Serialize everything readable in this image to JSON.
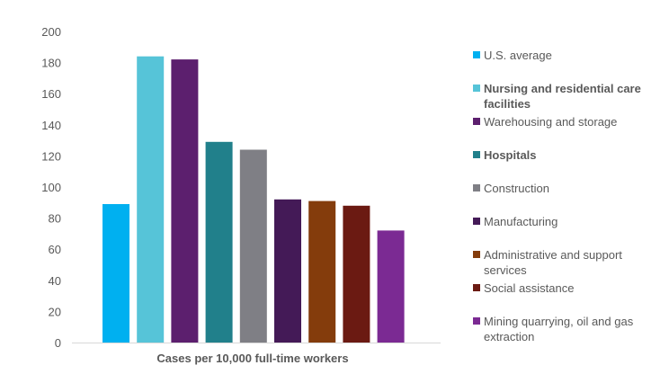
{
  "chart_data": {
    "type": "bar",
    "xlabel": "Cases per 10,000 full-time workers",
    "ylim": [
      0,
      200
    ],
    "yticks": [
      0,
      20,
      40,
      60,
      80,
      100,
      120,
      140,
      160,
      180,
      200
    ],
    "grid": false,
    "legend_position": "right",
    "series": [
      {
        "name": "U.S. average",
        "value": 89,
        "color": "#00B0F0",
        "bold": false
      },
      {
        "name": "Nursing and residential care facilities",
        "value": 184,
        "color": "#56C4D8",
        "bold": true
      },
      {
        "name": "Warehousing and storage",
        "value": 182,
        "color": "#5C1F6E",
        "bold": false
      },
      {
        "name": "Hospitals",
        "value": 129,
        "color": "#21808B",
        "bold": true
      },
      {
        "name": "Construction",
        "value": 124,
        "color": "#7F7F85",
        "bold": false
      },
      {
        "name": "Manufacturing",
        "value": 92,
        "color": "#441A57",
        "bold": false
      },
      {
        "name": "Administrative and support services",
        "value": 91,
        "color": "#843C0C",
        "bold": false
      },
      {
        "name": "Social assistance",
        "value": 88,
        "color": "#6B1A12",
        "bold": false
      },
      {
        "name": "Mining quarrying, oil and gas extraction",
        "value": 72,
        "color": "#7B2A93",
        "bold": false
      }
    ]
  }
}
